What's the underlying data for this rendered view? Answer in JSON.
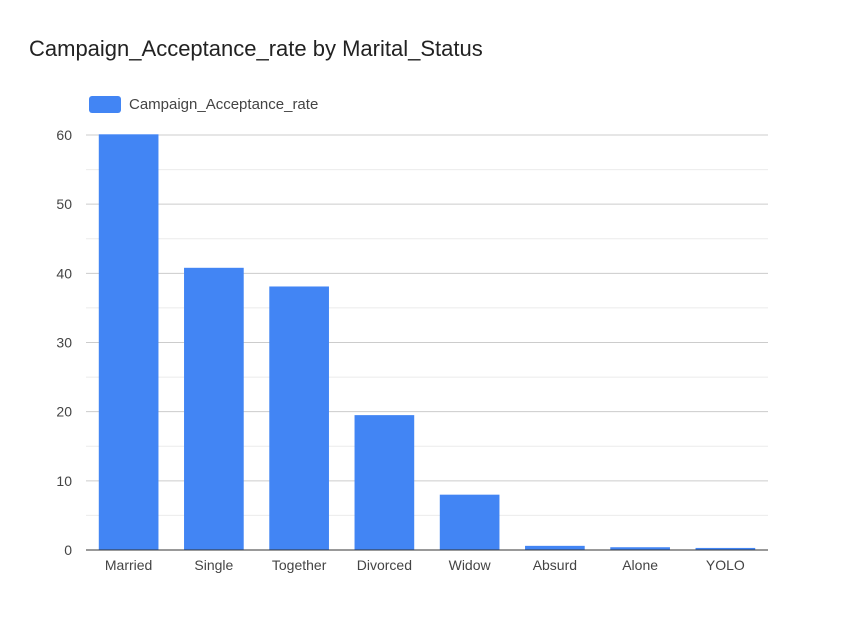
{
  "chart_data": {
    "type": "bar",
    "title": "Campaign_Acceptance_rate by Marital_Status",
    "categories": [
      "Married",
      "Single",
      "Together",
      "Divorced",
      "Widow",
      "Absurd",
      "Alone",
      "YOLO"
    ],
    "series": [
      {
        "name": "Campaign_Acceptance_rate",
        "color": "#4285f4",
        "values": [
          60.1,
          40.8,
          38.1,
          19.5,
          8.0,
          0.6,
          0.4,
          0.3
        ]
      }
    ],
    "ylim": [
      0,
      60
    ],
    "yticks": [
      0,
      10,
      20,
      30,
      40,
      50,
      60
    ],
    "grid": true,
    "legend_position": "top-left",
    "xlabel": "",
    "ylabel": ""
  }
}
